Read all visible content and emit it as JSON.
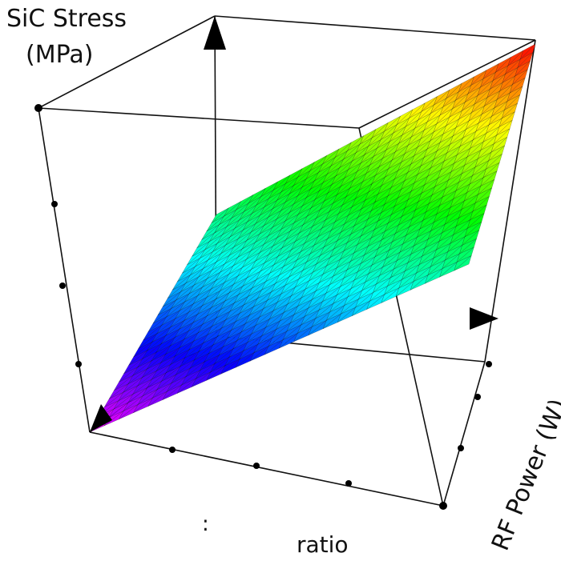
{
  "chart_data": {
    "type": "surface3d",
    "title": "",
    "zlabel_line1": "SiC Stress",
    "zlabel_line2": "(MPa)",
    "xlabel": "ratio",
    "ylabel": "RF Power (W)",
    "x_tick_fragment": ":",
    "tick_labels_visible": false,
    "colormap": [
      "#ff00ff",
      "#0000ff",
      "#00ffff",
      "#00ff00",
      "#ffff00",
      "#ff0000"
    ],
    "surface": {
      "description_free": true,
      "corner_values_normalized": [
        [
          0.0,
          0.5
        ],
        [
          0.5,
          1.0
        ]
      ]
    },
    "grid_lines": false,
    "legend": "none"
  },
  "colors": {
    "axis": "#111111",
    "box": "#111111",
    "mesh": "#000000"
  }
}
